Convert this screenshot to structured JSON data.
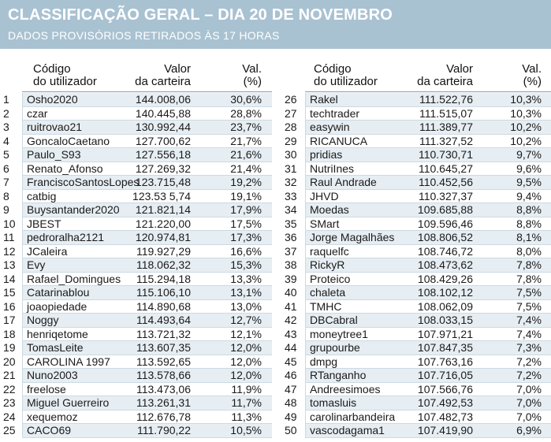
{
  "header": {
    "title": "CLASSIFICAÇÃO GERAL – DIA 20 DE NOVEMBRO",
    "subtitle": "DADOS PROVISÓRIOS RETIRADOS ÀS 17 HORAS"
  },
  "columns": {
    "code_line1": "Código",
    "code_line2": "do utilizador",
    "value_line1": "Valor",
    "value_line2": "da carteira",
    "pct_line1": "Val.",
    "pct_line2": "(%)"
  },
  "left_rows": [
    {
      "n": "1",
      "name": "Osho2020",
      "val": "144.008,06",
      "pct": "30,6%"
    },
    {
      "n": "2",
      "name": "czar",
      "val": "140.445,88",
      "pct": "28,8%"
    },
    {
      "n": "3",
      "name": "ruitrovao21",
      "val": "130.992,44",
      "pct": "23,7%"
    },
    {
      "n": "4",
      "name": "GoncaloCaetano",
      "val": "127.700,62",
      "pct": "21,7%"
    },
    {
      "n": "5",
      "name": "Paulo_S93",
      "val": "127.556,18",
      "pct": "21,6%"
    },
    {
      "n": "6",
      "name": "Renato_Afonso",
      "val": "127.269,32",
      "pct": "21,4%"
    },
    {
      "n": "7",
      "name": "FranciscoSantosLopes",
      "val": "123.715,48",
      "pct": "19,2%"
    },
    {
      "n": "8",
      "name": "catbig",
      "val": "123.53 5,74",
      "pct": "19,1%"
    },
    {
      "n": "9",
      "name": "Buysantander2020",
      "val": "121.821,14",
      "pct": "17,9%"
    },
    {
      "n": "10",
      "name": "JBEST",
      "val": "121.220,00",
      "pct": "17,5%"
    },
    {
      "n": "11",
      "name": "pedroralha2121",
      "val": "120.974,81",
      "pct": "17,3%"
    },
    {
      "n": "12",
      "name": "JCaleira",
      "val": "119.927,29",
      "pct": "16,6%"
    },
    {
      "n": "13",
      "name": "Evy",
      "val": "118.062,32",
      "pct": "15,3%"
    },
    {
      "n": "14",
      "name": "Rafael_Domingues",
      "val": "115.294,18",
      "pct": "13,3%"
    },
    {
      "n": "15",
      "name": "Catarinablou",
      "val": "115.106,10",
      "pct": "13,1%"
    },
    {
      "n": "16",
      "name": "joaopiedade",
      "val": "114.890,68",
      "pct": "13,0%"
    },
    {
      "n": "17",
      "name": "Noggy",
      "val": "114.493,64",
      "pct": "12,7%"
    },
    {
      "n": "18",
      "name": "henriqetome",
      "val": "113.721,32",
      "pct": "12,1%"
    },
    {
      "n": "19",
      "name": "TomasLeite",
      "val": "113.607,35",
      "pct": "12,0%"
    },
    {
      "n": "20",
      "name": "CAROLINA 1997",
      "val": "113.592,65",
      "pct": "12,0%"
    },
    {
      "n": "21",
      "name": "Nuno2003",
      "val": "113.578,66",
      "pct": "12,0%"
    },
    {
      "n": "22",
      "name": "freelose",
      "val": "113.473,06",
      "pct": "11,9%"
    },
    {
      "n": "23",
      "name": "Miguel Guerreiro",
      "val": "113.261,31",
      "pct": "11,7%"
    },
    {
      "n": "24",
      "name": "xequemoz",
      "val": "112.676,78",
      "pct": "11,3%"
    },
    {
      "n": "25",
      "name": "CACO69",
      "val": "111.790,22",
      "pct": "10,5%"
    }
  ],
  "right_rows": [
    {
      "n": "26",
      "name": "Rakel",
      "val": "111.522,76",
      "pct": "10,3%"
    },
    {
      "n": "27",
      "name": "techtrader",
      "val": "111.515,07",
      "pct": "10,3%"
    },
    {
      "n": "28",
      "name": "easywin",
      "val": "111.389,77",
      "pct": "10,2%"
    },
    {
      "n": "29",
      "name": "RICANUCA",
      "val": "111.327,52",
      "pct": "10,2%"
    },
    {
      "n": "30",
      "name": "pridias",
      "val": "110.730,71",
      "pct": "9,7%"
    },
    {
      "n": "31",
      "name": "NutriInes",
      "val": "110.645,27",
      "pct": "9,6%"
    },
    {
      "n": "32",
      "name": "Raul Andrade",
      "val": "110.452,56",
      "pct": "9,5%"
    },
    {
      "n": "33",
      "name": "JHVD",
      "val": "110.327,37",
      "pct": "9,4%"
    },
    {
      "n": "34",
      "name": "Moedas",
      "val": "109.685,88",
      "pct": "8,8%"
    },
    {
      "n": "35",
      "name": "SMart",
      "val": "109.596,46",
      "pct": "8,8%"
    },
    {
      "n": "36",
      "name": "Jorge Magalhães",
      "val": "108.806,52",
      "pct": "8,1%"
    },
    {
      "n": "37",
      "name": "raquelfc",
      "val": "108.746,72",
      "pct": "8,0%"
    },
    {
      "n": "38",
      "name": "RickyR",
      "val": "108.473,62",
      "pct": "7,8%"
    },
    {
      "n": "39",
      "name": "Proteico",
      "val": "108.429,26",
      "pct": "7,8%"
    },
    {
      "n": "40",
      "name": "chaleta",
      "val": "108.102,12",
      "pct": "7,5%"
    },
    {
      "n": "41",
      "name": "TMHC",
      "val": "108.062,09",
      "pct": "7,5%"
    },
    {
      "n": "42",
      "name": "DBCabral",
      "val": "108.033,15",
      "pct": "7,4%"
    },
    {
      "n": "43",
      "name": "moneytree1",
      "val": "107.971,21",
      "pct": "7,4%"
    },
    {
      "n": "44",
      "name": "grupourbe",
      "val": "107.847,35",
      "pct": "7,3%"
    },
    {
      "n": "45",
      "name": "dmpg",
      "val": "107.763,16",
      "pct": "7,2%"
    },
    {
      "n": "46",
      "name": "RTanganho",
      "val": "107.716,05",
      "pct": "7,2%"
    },
    {
      "n": "47",
      "name": "Andreesimoes",
      "val": "107.566,76",
      "pct": "7,0%"
    },
    {
      "n": "48",
      "name": "tomasluis",
      "val": "107.492,53",
      "pct": "7,0%"
    },
    {
      "n": "49",
      "name": "carolinarbandeira",
      "val": "107.482,73",
      "pct": "7,0%"
    },
    {
      "n": "50",
      "name": "vascodagama1",
      "val": "107.419,90",
      "pct": "6,9%"
    }
  ],
  "colors": {
    "header_bg": "#a9c2d2",
    "row_shade": "#e6eef3"
  }
}
